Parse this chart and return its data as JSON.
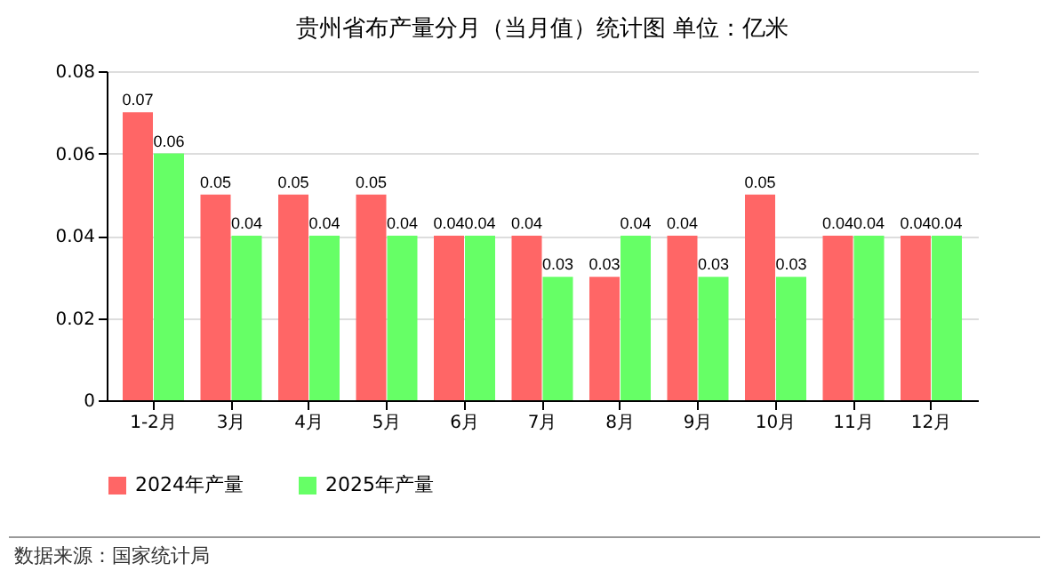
{
  "chart_data": {
    "type": "bar",
    "title": "贵州省布产量分月（当月值）统计图  单位：亿米",
    "categories": [
      "1-2月",
      "3月",
      "4月",
      "5月",
      "6月",
      "7月",
      "8月",
      "9月",
      "10月",
      "11月",
      "12月"
    ],
    "series": [
      {
        "name": "2024年产量",
        "color": "#ff6666",
        "values": [
          0.07,
          0.05,
          0.05,
          0.05,
          0.04,
          0.04,
          0.03,
          0.04,
          0.05,
          0.04,
          0.04
        ]
      },
      {
        "name": "2025年产量",
        "color": "#66ff66",
        "values": [
          0.06,
          0.04,
          0.04,
          0.04,
          0.04,
          0.03,
          0.04,
          0.03,
          0.03,
          0.04,
          0.04
        ]
      }
    ],
    "ylim": [
      0,
      0.08
    ],
    "yticks": [
      0,
      0.02,
      0.04,
      0.06,
      0.08
    ],
    "grid": "y",
    "legend": "bottom",
    "data_labels": true,
    "annotations": [
      "数据来源：国家统计局"
    ]
  }
}
